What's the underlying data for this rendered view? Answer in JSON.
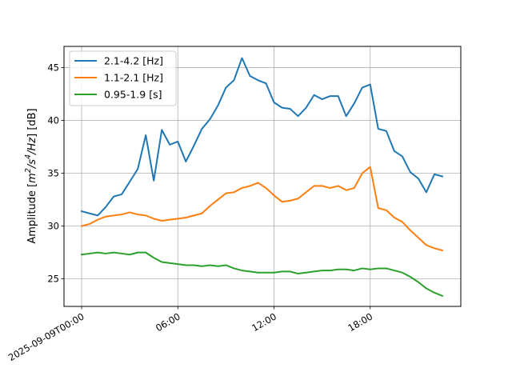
{
  "chart_data": {
    "type": "line",
    "ylabel_parts": [
      "Amplitude [",
      "m",
      "2",
      "/",
      "s",
      "4",
      "/",
      "Hz",
      "] [dB]"
    ],
    "x_tick_labels": [
      "2025-09-09T00:00",
      "06:00",
      "12:00",
      "18:00"
    ],
    "x_ticks_hours": [
      0,
      6,
      12,
      18
    ],
    "x_range_hours": [
      -1.1,
      23.65
    ],
    "y_tick_labels": [
      "25",
      "30",
      "35",
      "40",
      "45"
    ],
    "y_ticks": [
      25,
      30,
      35,
      40,
      45
    ],
    "ylim": [
      22.4,
      47.0
    ],
    "grid": true,
    "legend_position": "top-left",
    "x_hours": [
      0,
      0.5,
      1,
      1.5,
      2,
      2.5,
      3,
      3.5,
      4,
      4.5,
      5,
      5.5,
      6,
      6.5,
      7,
      7.5,
      8,
      8.5,
      9,
      9.5,
      10,
      10.5,
      11,
      11.5,
      12,
      12.5,
      13,
      13.5,
      14,
      14.5,
      15,
      15.5,
      16,
      16.5,
      17,
      17.5,
      18,
      18.5,
      19,
      19.5,
      20,
      20.5,
      21,
      21.5,
      22,
      22.5
    ],
    "series": [
      {
        "name": "2.1-4.2 [Hz]",
        "color": "#1f77b4",
        "values": [
          31.4,
          31.2,
          31.0,
          31.8,
          32.8,
          33.0,
          34.2,
          35.4,
          38.6,
          34.3,
          39.1,
          37.7,
          38.0,
          36.1,
          37.6,
          39.2,
          40.1,
          41.4,
          43.1,
          43.8,
          45.9,
          44.2,
          43.8,
          43.5,
          41.7,
          41.2,
          41.1,
          40.4,
          41.2,
          42.4,
          42.0,
          42.3,
          42.3,
          40.4,
          41.6,
          43.1,
          43.4,
          39.2,
          39.0,
          37.1,
          36.6,
          35.1,
          34.5,
          33.2,
          34.9,
          34.7
        ]
      },
      {
        "name": "1.1-2.1 [Hz]",
        "color": "#ff7f0e",
        "values": [
          30.0,
          30.2,
          30.6,
          30.9,
          31.0,
          31.1,
          31.3,
          31.1,
          31.0,
          30.7,
          30.5,
          30.6,
          30.7,
          30.8,
          31.0,
          31.2,
          31.9,
          32.5,
          33.1,
          33.2,
          33.6,
          33.8,
          34.1,
          33.6,
          32.9,
          32.3,
          32.4,
          32.6,
          33.2,
          33.8,
          33.8,
          33.6,
          33.8,
          33.4,
          33.6,
          35.0,
          35.6,
          31.7,
          31.5,
          30.8,
          30.4,
          29.6,
          28.9,
          28.2,
          27.9,
          27.7
        ]
      },
      {
        "name": "0.95-1.9 [s]",
        "color": "#2ca02c",
        "values": [
          27.3,
          27.4,
          27.5,
          27.4,
          27.5,
          27.4,
          27.3,
          27.5,
          27.5,
          27.0,
          26.6,
          26.5,
          26.4,
          26.3,
          26.3,
          26.2,
          26.3,
          26.2,
          26.3,
          26.0,
          25.8,
          25.7,
          25.6,
          25.6,
          25.6,
          25.7,
          25.7,
          25.5,
          25.6,
          25.7,
          25.8,
          25.8,
          25.9,
          25.9,
          25.8,
          26.0,
          25.9,
          26.0,
          26.0,
          25.8,
          25.6,
          25.2,
          24.7,
          24.1,
          23.7,
          23.4
        ]
      }
    ]
  }
}
